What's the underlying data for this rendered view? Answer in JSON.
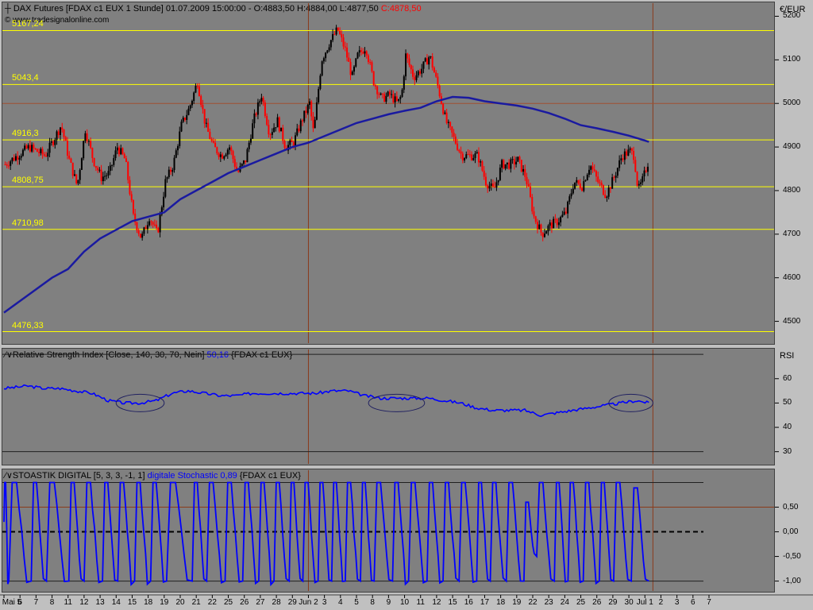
{
  "main": {
    "title": {
      "icon": "crosshair-icon",
      "instrument": "DAX Futures [FDAX c1 EUX  1 Stunde]",
      "datetime": "01.07.2009 15:00:00",
      "ohl": "- O:4883,50 H:4884,00 L:4877,50",
      "close": "C:4878,50"
    },
    "copyright": "© www.tradesignalonline.com",
    "currency": "€/EUR",
    "hlines": [
      {
        "label": "5167,24",
        "value": 5167.24
      },
      {
        "label": "5043,4",
        "value": 5043.4
      },
      {
        "label": "4916,3",
        "value": 4916.3
      },
      {
        "label": "4808,75",
        "value": 4808.75
      },
      {
        "label": "4710,98",
        "value": 4710.98
      },
      {
        "label": "4476,33",
        "value": 4476.33
      }
    ],
    "colors": {
      "bg": "#808080",
      "up": "#000000",
      "down": "#ff0000",
      "ma": "#1a1aa0",
      "hline": "#ffff00",
      "vline": "#8b3a1a"
    }
  },
  "rsi": {
    "label_name": "Relative Strength Index",
    "label_params": "[Close, 140, 30, 70, Nein]",
    "label_value": "50,16",
    "label_symbol": "{FDAX c1 EUX}",
    "scale_title": "RSI",
    "color": "#0000ff"
  },
  "sto": {
    "label_name": "STOASTIK DIGITAL",
    "label_params": "[5, 3, 3, -1, 1]",
    "label_value": "digitale Stochastic 0,89",
    "label_symbol": "{FDAX c1 EUX}",
    "color": "#0000ff"
  },
  "chart_data": [
    {
      "type": "candlestick",
      "title": "DAX Futures [FDAX c1 EUX  1 Stunde]",
      "ylabel": "€/EUR",
      "ylim": [
        4450,
        5230
      ],
      "yticks": [
        "5200",
        "5100",
        "5000",
        "4900",
        "4800",
        "4700",
        "4600",
        "4500"
      ],
      "xticks": [
        "Mai 5",
        "6",
        "7",
        "8",
        "11",
        "12",
        "13",
        "14",
        "15",
        "18",
        "19",
        "20",
        "21",
        "22",
        "25",
        "26",
        "27",
        "28",
        "29",
        "Jun 2",
        "3",
        "4",
        "5",
        "8",
        "9",
        "10",
        "11",
        "12",
        "15",
        "16",
        "17",
        "18",
        "19",
        "22",
        "23",
        "24",
        "25",
        "26",
        "29",
        "30",
        "Jul 1",
        "2",
        "3",
        "6",
        "7"
      ],
      "price_path": [
        [
          0,
          4860
        ],
        [
          3,
          4900
        ],
        [
          5,
          4880
        ],
        [
          7,
          4950
        ],
        [
          8,
          4870
        ],
        [
          9,
          4810
        ],
        [
          10,
          4940
        ],
        [
          11,
          4870
        ],
        [
          12,
          4830
        ],
        [
          13,
          4840
        ],
        [
          14,
          4900
        ],
        [
          15,
          4870
        ],
        [
          16,
          4740
        ],
        [
          17,
          4690
        ],
        [
          18,
          4740
        ],
        [
          19,
          4700
        ],
        [
          20,
          4820
        ],
        [
          21,
          4860
        ],
        [
          22,
          4950
        ],
        [
          23,
          4990
        ],
        [
          24,
          5050
        ],
        [
          25,
          4950
        ],
        [
          26,
          4900
        ],
        [
          27,
          4880
        ],
        [
          28,
          4900
        ],
        [
          29,
          4840
        ],
        [
          30,
          4870
        ],
        [
          31,
          4960
        ],
        [
          32,
          5020
        ],
        [
          33,
          4930
        ],
        [
          34,
          4960
        ],
        [
          35,
          4900
        ],
        [
          36,
          4910
        ],
        [
          37,
          4960
        ],
        [
          38,
          5000
        ],
        [
          38.5,
          4930
        ],
        [
          39.5,
          5100
        ],
        [
          40.5,
          5140
        ],
        [
          41.5,
          5170
        ],
        [
          42.5,
          5120
        ],
        [
          43.3,
          5060
        ],
        [
          44,
          5110
        ],
        [
          45,
          5130
        ],
        [
          46,
          5050
        ],
        [
          47,
          5010
        ],
        [
          48,
          5020
        ],
        [
          49,
          5000
        ],
        [
          49.5,
          5020
        ],
        [
          50,
          5110
        ],
        [
          51,
          5060
        ],
        [
          52,
          5080
        ],
        [
          53,
          5110
        ],
        [
          54,
          5040
        ],
        [
          55,
          4960
        ],
        [
          56,
          4920
        ],
        [
          57,
          4880
        ],
        [
          58,
          4880
        ],
        [
          59,
          4880
        ],
        [
          60,
          4820
        ],
        [
          61,
          4800
        ],
        [
          62,
          4860
        ],
        [
          63,
          4860
        ],
        [
          64,
          4870
        ],
        [
          65,
          4830
        ],
        [
          66,
          4740
        ],
        [
          67,
          4700
        ],
        [
          68,
          4720
        ],
        [
          69,
          4730
        ],
        [
          70,
          4750
        ],
        [
          71,
          4820
        ],
        [
          72,
          4810
        ],
        [
          73,
          4860
        ],
        [
          74,
          4820
        ],
        [
          75,
          4790
        ],
        [
          76,
          4830
        ],
        [
          77,
          4880
        ],
        [
          78,
          4890
        ],
        [
          78.5,
          4880
        ],
        [
          79,
          4800
        ],
        [
          79.5,
          4820
        ],
        [
          80.5,
          4880
        ]
      ],
      "ma_path": [
        [
          0,
          4520
        ],
        [
          3,
          4560
        ],
        [
          6,
          4600
        ],
        [
          8,
          4620
        ],
        [
          10,
          4660
        ],
        [
          12,
          4690
        ],
        [
          14,
          4710
        ],
        [
          16,
          4730
        ],
        [
          18,
          4740
        ],
        [
          20,
          4750
        ],
        [
          22,
          4780
        ],
        [
          24,
          4800
        ],
        [
          26,
          4820
        ],
        [
          28,
          4840
        ],
        [
          30,
          4855
        ],
        [
          32,
          4870
        ],
        [
          34,
          4885
        ],
        [
          36,
          4900
        ],
        [
          38,
          4910
        ],
        [
          40,
          4925
        ],
        [
          42,
          4940
        ],
        [
          44,
          4955
        ],
        [
          46,
          4965
        ],
        [
          48,
          4975
        ],
        [
          50,
          4983
        ],
        [
          52,
          4990
        ],
        [
          54,
          5005
        ],
        [
          56,
          5015
        ],
        [
          58,
          5013
        ],
        [
          60,
          5005
        ],
        [
          62,
          5000
        ],
        [
          64,
          4995
        ],
        [
          66,
          4988
        ],
        [
          68,
          4978
        ],
        [
          70,
          4965
        ],
        [
          72,
          4950
        ],
        [
          74,
          4943
        ],
        [
          76,
          4935
        ],
        [
          78,
          4926
        ],
        [
          80.5,
          4912
        ]
      ]
    },
    {
      "type": "line",
      "title": "Relative Strength Index [Close, 140, 30, 70, Nein]",
      "ylabel": "RSI",
      "ylim": [
        25,
        72
      ],
      "yticks": [
        "60",
        "50",
        "40",
        "30"
      ],
      "levels": [
        70,
        30
      ],
      "highlights": [
        [
          14,
          20
        ],
        [
          45.5,
          52.5
        ],
        [
          75.5,
          81
        ]
      ],
      "series": [
        {
          "name": "Relative Strength Index",
          "points": [
            [
              0,
              56
            ],
            [
              3,
              57
            ],
            [
              5,
              56
            ],
            [
              7,
              56
            ],
            [
              9,
              55
            ],
            [
              11,
              54
            ],
            [
              13,
              51
            ],
            [
              15,
              50
            ],
            [
              17,
              50
            ],
            [
              19,
              51
            ],
            [
              21,
              54
            ],
            [
              23,
              55
            ],
            [
              25,
              54
            ],
            [
              27,
              53
            ],
            [
              29,
              53
            ],
            [
              31,
              54
            ],
            [
              33,
              54
            ],
            [
              35,
              54
            ],
            [
              37,
              54
            ],
            [
              39,
              54
            ],
            [
              41,
              55
            ],
            [
              43,
              55
            ],
            [
              45,
              53
            ],
            [
              47,
              52
            ],
            [
              49,
              52
            ],
            [
              51,
              52
            ],
            [
              53,
              52
            ],
            [
              55,
              51
            ],
            [
              57,
              50
            ],
            [
              59,
              48
            ],
            [
              61,
              47
            ],
            [
              63,
              47
            ],
            [
              65,
              47
            ],
            [
              67,
              45
            ],
            [
              69,
              46
            ],
            [
              71,
              47
            ],
            [
              73,
              48
            ],
            [
              75,
              49
            ],
            [
              77,
              50
            ],
            [
              79,
              51
            ],
            [
              80.5,
              50
            ]
          ]
        }
      ]
    },
    {
      "type": "line",
      "title": "STOASTIK DIGITAL [5, 3, 3, -1, 1]",
      "ylim": [
        -1.2,
        1.25
      ],
      "yticks": [
        "0,50",
        "0,00",
        "-0,50",
        "-1,00"
      ],
      "levels": [
        1.0,
        0.5,
        0.0,
        -1.0
      ],
      "series": [
        {
          "name": "digitale Stochastic",
          "start": 0.2,
          "end": 0.89,
          "cycles": [
            [
              0.6,
              -1,
              1
            ],
            [
              3.4,
              -1,
              1
            ],
            [
              5.3,
              -1,
              1
            ],
            [
              8.1,
              -1,
              1
            ],
            [
              10,
              -1,
              1
            ],
            [
              12.3,
              -1,
              1
            ],
            [
              14.2,
              -1,
              1
            ],
            [
              16.3,
              -1,
              1
            ],
            [
              18.3,
              -1,
              1
            ],
            [
              20.3,
              -1,
              1
            ],
            [
              23.5,
              -1,
              1
            ],
            [
              25.3,
              -1,
              1
            ],
            [
              27.6,
              -1,
              1
            ],
            [
              29.8,
              -1,
              1
            ],
            [
              31.8,
              -1,
              1
            ],
            [
              33.7,
              -1,
              1
            ],
            [
              35.6,
              -1,
              1
            ],
            [
              37.3,
              -1,
              1
            ],
            [
              39.2,
              -1,
              1
            ],
            [
              40.9,
              -1,
              1
            ],
            [
              42.6,
              -1,
              1
            ],
            [
              44.5,
              -1,
              1
            ],
            [
              46.2,
              -1,
              1
            ],
            [
              48.5,
              -1,
              1
            ],
            [
              50.5,
              -1,
              1
            ],
            [
              52.8,
              -1,
              1
            ],
            [
              54.8,
              -1,
              1
            ],
            [
              56.8,
              -1,
              1
            ],
            [
              59,
              -1,
              1
            ],
            [
              60.7,
              -1,
              1
            ],
            [
              62.7,
              -1,
              1
            ],
            [
              64.9,
              -1,
              1
            ],
            [
              66.5,
              -0.5,
              0.6
            ],
            [
              68.7,
              -1,
              1
            ],
            [
              70.4,
              -1,
              1
            ],
            [
              72.3,
              -1,
              1
            ],
            [
              74.3,
              -1,
              1
            ],
            [
              76.1,
              -1,
              1
            ],
            [
              78.3,
              -1,
              1
            ],
            [
              80.5,
              -1,
              0.89
            ]
          ]
        }
      ]
    }
  ]
}
